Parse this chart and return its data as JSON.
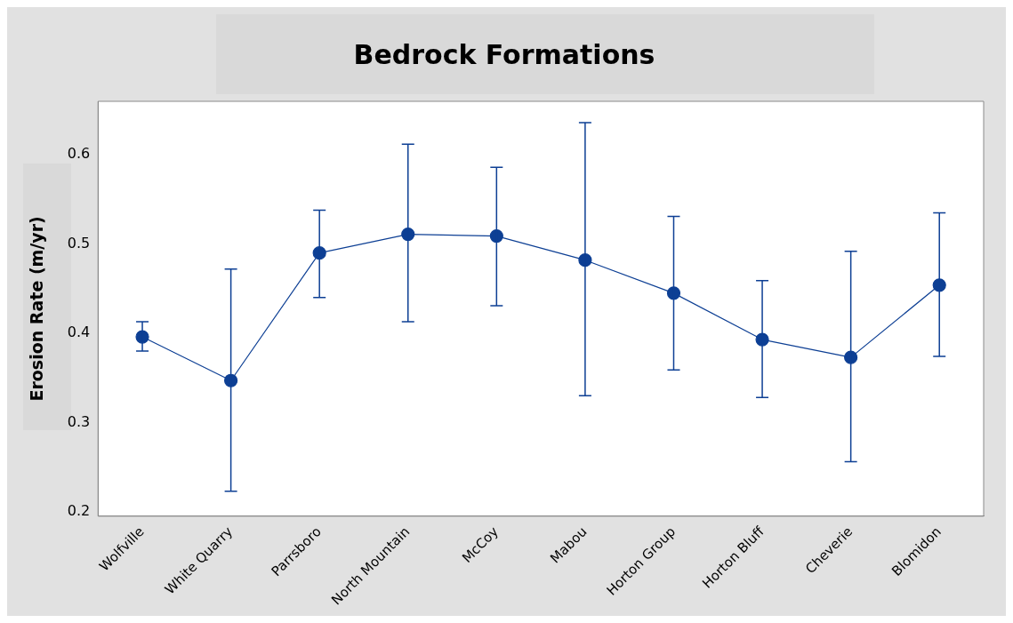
{
  "chart_data": {
    "type": "line",
    "title": "Bedrock Formations",
    "ylabel": "Erosion Rate (m/yr)",
    "categories": [
      "Wolfville",
      "White Quarry",
      "Parrsboro",
      "North Mountain",
      "McCoy",
      "Mabou",
      "Horton Group",
      "Horton Bluff",
      "Cheverie",
      "Blomidon"
    ],
    "series": [
      {
        "color": "#0d3f94",
        "values": [
          0.396,
          0.347,
          0.49,
          0.511,
          0.509,
          0.482,
          0.445,
          0.393,
          0.373,
          0.454
        ],
        "errors": [
          [
            0.38,
            0.413
          ],
          [
            0.223,
            0.472
          ],
          [
            0.44,
            0.538
          ],
          [
            0.413,
            0.612
          ],
          [
            0.431,
            0.586
          ],
          [
            0.33,
            0.636
          ],
          [
            0.359,
            0.531
          ],
          [
            0.328,
            0.459
          ],
          [
            0.256,
            0.492
          ],
          [
            0.374,
            0.535
          ]
        ]
      }
    ],
    "ylim": [
      0.195,
      0.66
    ],
    "yticks": [
      0.2,
      0.3,
      0.4,
      0.5,
      0.6
    ],
    "grid": false,
    "legend": false,
    "marker": "circle",
    "line_style": "solid"
  }
}
